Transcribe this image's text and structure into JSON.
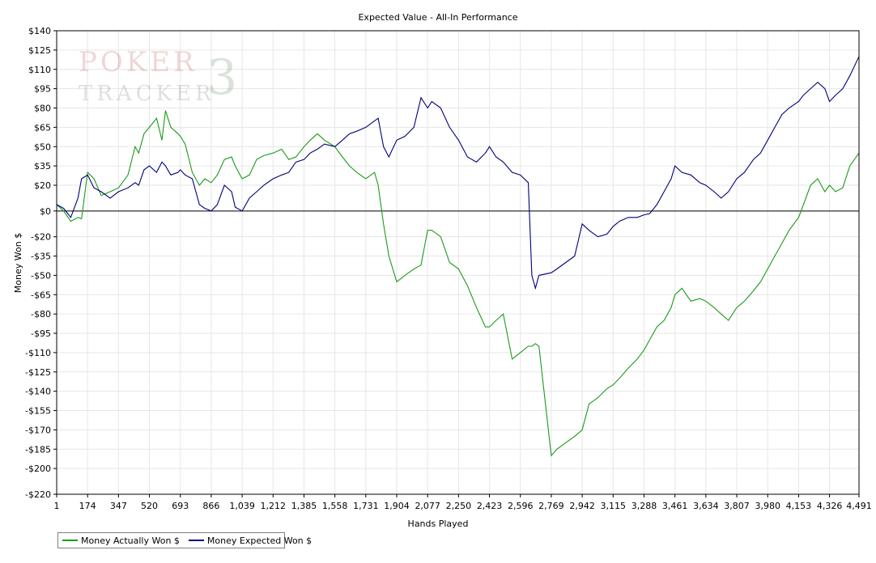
{
  "chart_data": {
    "type": "line",
    "title": "Expected Value - All-In Performance",
    "xlabel": "Hands Played",
    "ylabel": "Money Won $",
    "xlim": [
      1,
      4491
    ],
    "ylim": [
      -220,
      140
    ],
    "x_ticks": [
      1,
      174,
      347,
      520,
      693,
      866,
      1039,
      1212,
      1385,
      1558,
      1731,
      1904,
      2077,
      2250,
      2423,
      2596,
      2769,
      2942,
      3115,
      3288,
      3461,
      3634,
      3807,
      3980,
      4153,
      4326,
      4491
    ],
    "x_tick_labels": [
      "1",
      "174",
      "347",
      "520",
      "693",
      "866",
      "1,039",
      "1,212",
      "1,385",
      "1,558",
      "1,731",
      "1,904",
      "2,077",
      "2,250",
      "2,423",
      "2,596",
      "2,769",
      "2,942",
      "3,115",
      "3,288",
      "3,461",
      "3,634",
      "3,807",
      "3,980",
      "4,153",
      "4,326",
      "4,491"
    ],
    "y_ticks": [
      140,
      125,
      110,
      95,
      80,
      65,
      50,
      35,
      20,
      0,
      -20,
      -35,
      -50,
      -65,
      -80,
      -95,
      -110,
      -125,
      -140,
      -155,
      -170,
      -185,
      -200,
      -220
    ],
    "y_tick_labels": [
      "$140",
      "$125",
      "$110",
      "$95",
      "$80",
      "$65",
      "$50",
      "$35",
      "$20",
      "$0",
      "-$20",
      "-$35",
      "-$50",
      "-$65",
      "-$80",
      "-$95",
      "-$110",
      "-$125",
      "-$140",
      "-$155",
      "-$170",
      "-$185",
      "-$200",
      "-$220"
    ],
    "grid": true,
    "legend_position": "bottom-left",
    "colors": {
      "actual": "#1a9a1a",
      "expected": "#00007a",
      "zero_line": "#000000",
      "grid": "#e6e6e6"
    },
    "series": [
      {
        "name": "Money Actually Won $",
        "color": "#1a9a1a",
        "x": [
          1,
          40,
          80,
          120,
          140,
          174,
          210,
          250,
          300,
          347,
          400,
          440,
          460,
          490,
          520,
          560,
          590,
          610,
          640,
          680,
          693,
          720,
          760,
          800,
          830,
          866,
          900,
          940,
          980,
          1000,
          1039,
          1080,
          1120,
          1160,
          1212,
          1260,
          1300,
          1340,
          1385,
          1420,
          1460,
          1500,
          1558,
          1600,
          1640,
          1680,
          1731,
          1780,
          1800,
          1830,
          1860,
          1904,
          1950,
          2000,
          2040,
          2077,
          2100,
          2150,
          2200,
          2250,
          2300,
          2350,
          2400,
          2423,
          2460,
          2500,
          2550,
          2596,
          2640,
          2660,
          2680,
          2700,
          2769,
          2800,
          2850,
          2900,
          2942,
          2980,
          3030,
          3080,
          3115,
          3150,
          3200,
          3250,
          3288,
          3320,
          3360,
          3400,
          3440,
          3461,
          3500,
          3550,
          3600,
          3634,
          3680,
          3720,
          3760,
          3807,
          3850,
          3900,
          3940,
          3980,
          4020,
          4060,
          4100,
          4153,
          4180,
          4220,
          4260,
          4300,
          4326,
          4360,
          4400,
          4440,
          4491
        ],
        "y": [
          5,
          0,
          -8,
          -5,
          -6,
          30,
          25,
          12,
          15,
          18,
          28,
          50,
          45,
          60,
          65,
          72,
          55,
          78,
          65,
          60,
          58,
          52,
          30,
          20,
          25,
          22,
          28,
          40,
          42,
          35,
          25,
          28,
          40,
          43,
          45,
          48,
          40,
          42,
          50,
          55,
          60,
          55,
          50,
          42,
          35,
          30,
          25,
          30,
          20,
          -10,
          -35,
          -55,
          -50,
          -45,
          -42,
          -15,
          -15,
          -20,
          -40,
          -45,
          -58,
          -75,
          -90,
          -90,
          -85,
          -80,
          -115,
          -110,
          -105,
          -105,
          -103,
          -105,
          -190,
          -185,
          -180,
          -175,
          -170,
          -150,
          -145,
          -138,
          -135,
          -130,
          -122,
          -115,
          -108,
          -100,
          -90,
          -85,
          -75,
          -65,
          -60,
          -70,
          -68,
          -70,
          -75,
          -80,
          -85,
          -75,
          -70,
          -62,
          -55,
          -45,
          -35,
          -25,
          -15,
          -5,
          5,
          20,
          25,
          15,
          20,
          15,
          18,
          35,
          45
        ],
        "note_src": ""
      },
      {
        "name": "Money Expected Won $",
        "color": "#00007a",
        "x": [
          1,
          40,
          80,
          120,
          140,
          174,
          210,
          250,
          300,
          347,
          400,
          440,
          460,
          490,
          520,
          560,
          590,
          610,
          640,
          680,
          693,
          720,
          760,
          800,
          830,
          866,
          900,
          940,
          980,
          1000,
          1039,
          1080,
          1120,
          1160,
          1212,
          1260,
          1300,
          1340,
          1385,
          1420,
          1460,
          1500,
          1558,
          1600,
          1640,
          1680,
          1731,
          1780,
          1800,
          1830,
          1860,
          1904,
          1950,
          2000,
          2040,
          2077,
          2100,
          2150,
          2200,
          2250,
          2300,
          2350,
          2400,
          2423,
          2460,
          2500,
          2550,
          2596,
          2640,
          2660,
          2680,
          2700,
          2769,
          2800,
          2850,
          2900,
          2942,
          2980,
          3030,
          3080,
          3115,
          3150,
          3200,
          3250,
          3288,
          3320,
          3360,
          3400,
          3440,
          3461,
          3500,
          3550,
          3600,
          3634,
          3680,
          3720,
          3760,
          3807,
          3850,
          3900,
          3940,
          3980,
          4020,
          4060,
          4100,
          4153,
          4180,
          4220,
          4260,
          4300,
          4326,
          4360,
          4400,
          4440,
          4491
        ],
        "y": [
          5,
          2,
          -5,
          10,
          25,
          28,
          18,
          15,
          10,
          15,
          18,
          22,
          20,
          32,
          35,
          30,
          38,
          35,
          28,
          30,
          32,
          28,
          25,
          5,
          2,
          0,
          5,
          20,
          15,
          3,
          0,
          10,
          15,
          20,
          25,
          28,
          30,
          38,
          40,
          45,
          48,
          52,
          50,
          55,
          60,
          62,
          65,
          70,
          72,
          50,
          42,
          55,
          58,
          65,
          88,
          80,
          85,
          80,
          65,
          55,
          42,
          38,
          45,
          50,
          42,
          38,
          30,
          28,
          22,
          -50,
          -60,
          -50,
          -48,
          -45,
          -40,
          -35,
          -10,
          -15,
          -20,
          -18,
          -12,
          -8,
          -5,
          -5,
          -3,
          -2,
          5,
          15,
          25,
          35,
          30,
          28,
          22,
          20,
          15,
          10,
          15,
          25,
          30,
          40,
          45,
          55,
          65,
          75,
          80,
          85,
          90,
          95,
          100,
          95,
          85,
          90,
          95,
          105,
          120
        ],
        "note_src": ""
      }
    ]
  },
  "legend": {
    "actual_label": "Money Actually Won $",
    "expected_label": "Money Expected Won $"
  },
  "watermark": {
    "line1": "POKER",
    "line2": "TRACKER",
    "mark": "3"
  }
}
